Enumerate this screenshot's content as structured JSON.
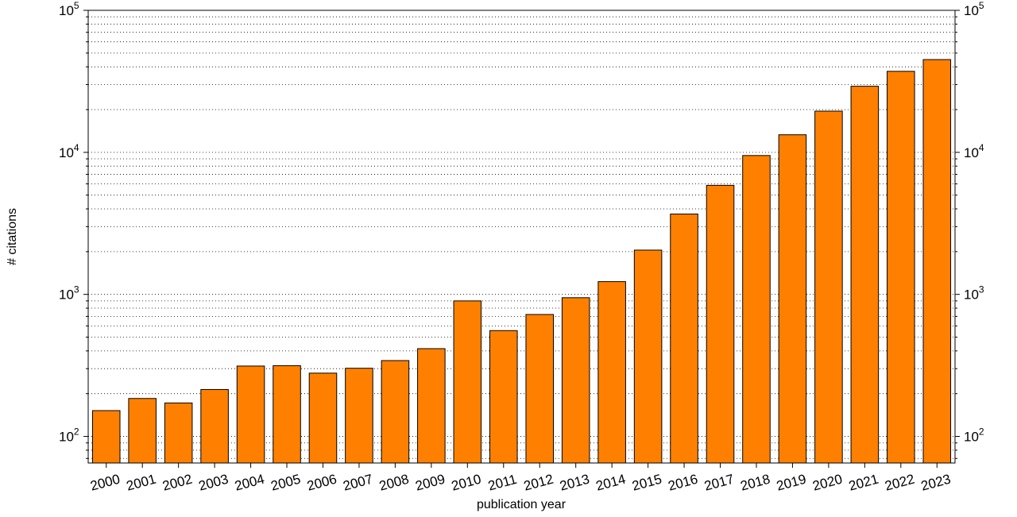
{
  "chart_data": {
    "type": "bar",
    "xlabel": "publication year",
    "ylabel": "# citations",
    "yscale": "log",
    "ylim": [
      65,
      100000
    ],
    "grid": "horizontal dotted at log minor ticks",
    "bar_color": "#ff8000",
    "y_ticks": [
      {
        "value": 100,
        "base": "10",
        "exp": "2"
      },
      {
        "value": 1000,
        "base": "10",
        "exp": "3"
      },
      {
        "value": 10000,
        "base": "10",
        "exp": "4"
      },
      {
        "value": 100000,
        "base": "10",
        "exp": "5"
      }
    ],
    "categories": [
      "2000",
      "2001",
      "2002",
      "2003",
      "2004",
      "2005",
      "2006",
      "2007",
      "2008",
      "2009",
      "2010",
      "2011",
      "2012",
      "2013",
      "2014",
      "2015",
      "2016",
      "2017",
      "2018",
      "2019",
      "2020",
      "2021",
      "2022",
      "2023"
    ],
    "values": [
      152,
      185,
      172,
      214,
      313,
      315,
      279,
      302,
      342,
      415,
      900,
      556,
      722,
      948,
      1230,
      2050,
      3680,
      5860,
      9500,
      13300,
      19500,
      29200,
      37200,
      45000
    ]
  }
}
